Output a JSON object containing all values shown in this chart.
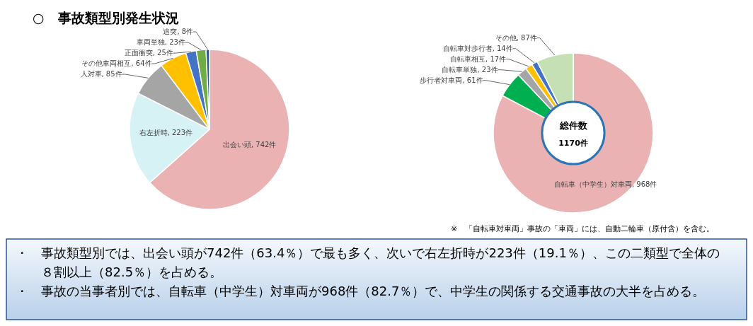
{
  "chart_data": [
    {
      "type": "pie",
      "title": "○　事故類型別発生状況",
      "categories": [
        "出会い頭",
        "右左折時",
        "人対車",
        "その他車両相互",
        "正面衝突",
        "車両単独",
        "追突"
      ],
      "values": [
        742,
        223,
        85,
        64,
        25,
        23,
        8
      ],
      "value_labels": [
        "742件",
        "223件",
        "85件",
        "64件",
        "25件",
        "23件",
        "8件"
      ],
      "colors": [
        "#eab2b2",
        "#d6f2f5",
        "#a5a5a5",
        "#ffc000",
        "#4472c4",
        "#70ad47",
        "#2f5597"
      ]
    },
    {
      "type": "donut",
      "categories": [
        "自転車（中学生）対車両",
        "歩行者対車両",
        "自転車単独",
        "自転車相互",
        "自転車対歩行者",
        "その他"
      ],
      "values": [
        968,
        61,
        23,
        17,
        14,
        87
      ],
      "value_labels": [
        "968件",
        "61件",
        "23件",
        "17件",
        "14件",
        "87件"
      ],
      "colors": [
        "#eab2b2",
        "#00b050",
        "#a5a5a5",
        "#ffc000",
        "#4472c4",
        "#c5e0b4"
      ],
      "annotations": [
        "総件数",
        "1170件",
        "※　「自転車対車両」事故の「車両」には、自動二輪車（原付含）を含む。"
      ]
    },
    {
      "type": "other",
      "annotations": [
        "・　事故類型別では、出会い頭が742件（63.4％）で最も多く、次いで右左折時が223件（19.1％）、この二類型で全体の８割以上（82.5％）を占める。",
        "・　事故の当事者別では、自転車（中学生）対車両が968件（82.7％）で、中学生の関係する交通事故の大半を占める。"
      ]
    }
  ]
}
